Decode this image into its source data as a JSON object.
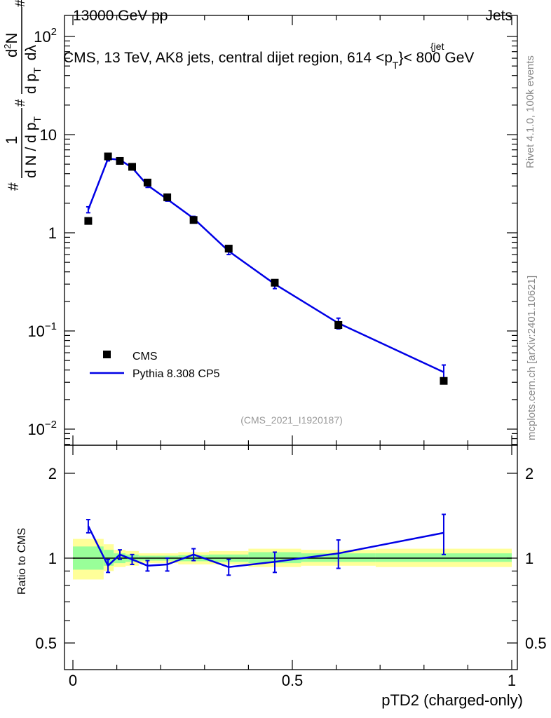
{
  "header": {
    "left": "13000 GeV pp",
    "right": "Jets",
    "title": "CMS, 13 TeV, AK8 jets, central dijet region, 614 <p",
    "title_sup": "{jet",
    "title_sub": "T",
    "title_end": "}< 800 GeV"
  },
  "ylabel_top": {
    "hash1": "#",
    "num1": "1",
    "den": "d N / d p",
    "den_sub": "T",
    "hash2": "#",
    "num2": "d",
    "num2_sup": "2",
    "num2_end": "N",
    "den2": "d p",
    "den2_sub": "T",
    "den2_end": "dλ",
    "hash3": "#"
  },
  "side_labels": {
    "rivet": "Rivet 4.1.0,  100k events",
    "mcplots": "mcplots.cern.ch [arXiv:2401.10621]"
  },
  "watermark": "(CMS_2021_I1920187)",
  "legend": {
    "data_label": "CMS",
    "mc_label": "Pythia 8.308 CP5"
  },
  "ratio_ylabel": "Ratio to CMS",
  "xlabel": "pTD2 (charged-only)",
  "colors": {
    "mc": "#0000e6",
    "band_inner": "#99ff99",
    "band_outer": "#ffff99",
    "data": "#000000"
  },
  "chart_data": {
    "type": "scatter",
    "x_range": [
      0,
      1
    ],
    "x_ticks": [
      {
        "value": 0,
        "label": "0"
      },
      {
        "value": 0.5,
        "label": "0.5"
      },
      {
        "value": 1,
        "label": "1"
      }
    ],
    "main": {
      "yscale": "log",
      "y_range": [
        0.007,
        150
      ],
      "y_ticks": [
        {
          "value": 0.01,
          "base": "10",
          "exp": "−2"
        },
        {
          "value": 0.1,
          "base": "10",
          "exp": "−1"
        },
        {
          "value": 1,
          "base": "1",
          "exp": ""
        },
        {
          "value": 10,
          "base": "10",
          "exp": ""
        },
        {
          "value": 100,
          "base": "10",
          "exp": "2"
        }
      ],
      "data": {
        "name": "CMS",
        "x": [
          0.035,
          0.08,
          0.107,
          0.135,
          0.17,
          0.215,
          0.275,
          0.355,
          0.46,
          0.605,
          0.845
        ],
        "y": [
          1.32,
          6.0,
          5.4,
          4.7,
          3.25,
          2.3,
          1.35,
          0.69,
          0.31,
          0.115,
          0.031
        ]
      },
      "mc": {
        "name": "Pythia 8.308 CP5",
        "x": [
          0.035,
          0.08,
          0.107,
          0.135,
          0.17,
          0.215,
          0.275,
          0.355,
          0.46,
          0.605,
          0.845
        ],
        "y": [
          1.72,
          5.7,
          5.55,
          4.6,
          3.05,
          2.2,
          1.4,
          0.65,
          0.3,
          0.12,
          0.038
        ],
        "err": [
          0.12,
          0.3,
          0.25,
          0.2,
          0.15,
          0.1,
          0.07,
          0.05,
          0.03,
          0.015,
          0.007
        ]
      }
    },
    "ratio": {
      "yscale": "log",
      "y_range": [
        0.43,
        2.45
      ],
      "y_ticks": [
        {
          "value": 0.5,
          "label": "0.5"
        },
        {
          "value": 1,
          "label": "1"
        },
        {
          "value": 2,
          "label": "2"
        }
      ],
      "bins": [
        {
          "lo": 0.0,
          "hi": 0.07,
          "inner": [
            0.91,
            1.1
          ],
          "outer": [
            0.84,
            1.17
          ]
        },
        {
          "lo": 0.07,
          "hi": 0.093,
          "inner": [
            0.94,
            1.07
          ],
          "outer": [
            0.9,
            1.12
          ]
        },
        {
          "lo": 0.093,
          "hi": 0.12,
          "inner": [
            0.96,
            1.04
          ],
          "outer": [
            0.93,
            1.07
          ]
        },
        {
          "lo": 0.12,
          "hi": 0.15,
          "inner": [
            0.97,
            1.03
          ],
          "outer": [
            0.94,
            1.06
          ]
        },
        {
          "lo": 0.15,
          "hi": 0.19,
          "inner": [
            0.98,
            1.02
          ],
          "outer": [
            0.96,
            1.04
          ]
        },
        {
          "lo": 0.19,
          "hi": 0.24,
          "inner": [
            0.98,
            1.02
          ],
          "outer": [
            0.96,
            1.04
          ]
        },
        {
          "lo": 0.24,
          "hi": 0.31,
          "inner": [
            0.975,
            1.025
          ],
          "outer": [
            0.95,
            1.05
          ]
        },
        {
          "lo": 0.31,
          "hi": 0.4,
          "inner": [
            0.97,
            1.03
          ],
          "outer": [
            0.95,
            1.06
          ]
        },
        {
          "lo": 0.4,
          "hi": 0.52,
          "inner": [
            0.96,
            1.05
          ],
          "outer": [
            0.93,
            1.08
          ]
        },
        {
          "lo": 0.52,
          "hi": 0.69,
          "inner": [
            0.97,
            1.04
          ],
          "outer": [
            0.94,
            1.07
          ]
        },
        {
          "lo": 0.69,
          "hi": 1.0,
          "inner": [
            0.97,
            1.04
          ],
          "outer": [
            0.93,
            1.08
          ]
        }
      ],
      "mc": {
        "x": [
          0.035,
          0.08,
          0.107,
          0.135,
          0.17,
          0.215,
          0.275,
          0.355,
          0.46,
          0.605,
          0.845
        ],
        "y": [
          1.3,
          0.94,
          1.03,
          0.99,
          0.94,
          0.95,
          1.03,
          0.93,
          0.97,
          1.04,
          1.23
        ],
        "err": [
          0.07,
          0.05,
          0.04,
          0.04,
          0.04,
          0.05,
          0.05,
          0.06,
          0.08,
          0.12,
          0.2
        ]
      }
    }
  }
}
